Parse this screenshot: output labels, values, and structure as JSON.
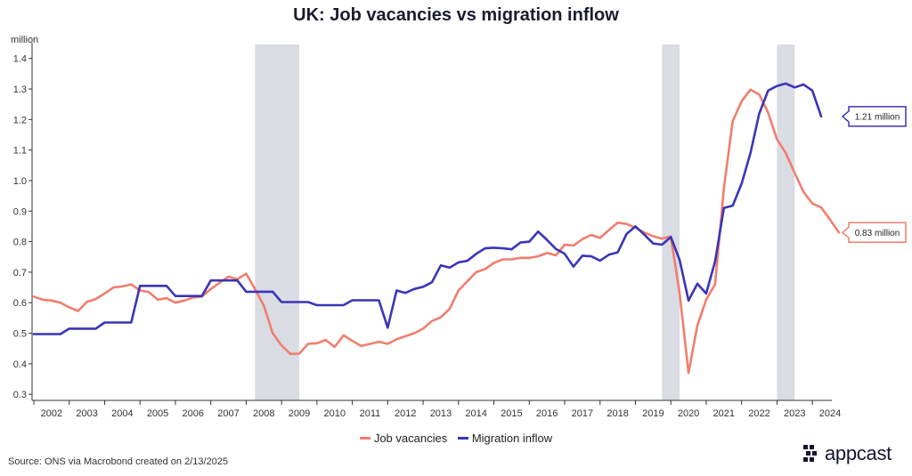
{
  "chart_data": {
    "type": "line",
    "title": "UK: Job vacancies vs migration inflow",
    "ylabel": "million",
    "ylim": [
      0.28,
      1.44
    ],
    "yticks": [
      0.3,
      0.4,
      0.5,
      0.6,
      0.7,
      0.8,
      0.9,
      1.0,
      1.1,
      1.2,
      1.3,
      1.4
    ],
    "ytick_labels": [
      "0.3",
      "0.4",
      "0.5",
      "0.6",
      "0.7",
      "0.8",
      "0.9",
      "1.0",
      "1.1",
      "1.2",
      "1.3",
      "1.4"
    ],
    "xlim": [
      2001.95,
      2024.55
    ],
    "xtick_labels": [
      "2002",
      "2003",
      "2004",
      "2005",
      "2006",
      "2007",
      "2008",
      "2009",
      "2010",
      "2011",
      "2012",
      "2013",
      "2014",
      "2015",
      "2016",
      "2017",
      "2018",
      "2019",
      "2020",
      "2021",
      "2022",
      "2023",
      "2024"
    ],
    "shaded_periods": [
      [
        2008.25,
        2009.5
      ],
      [
        2019.75,
        2020.25
      ],
      [
        2023.0,
        2023.5
      ]
    ],
    "series": [
      {
        "name": "Job vacancies",
        "color": "#f07e6e",
        "callout": "0.83 million",
        "points": [
          [
            2002.0,
            0.62
          ],
          [
            2002.25,
            0.61
          ],
          [
            2002.5,
            0.607
          ],
          [
            2002.75,
            0.6
          ],
          [
            2003.0,
            0.585
          ],
          [
            2003.25,
            0.573
          ],
          [
            2003.5,
            0.603
          ],
          [
            2003.75,
            0.612
          ],
          [
            2004.0,
            0.63
          ],
          [
            2004.25,
            0.65
          ],
          [
            2004.5,
            0.653
          ],
          [
            2004.75,
            0.66
          ],
          [
            2005.0,
            0.64
          ],
          [
            2005.25,
            0.635
          ],
          [
            2005.5,
            0.61
          ],
          [
            2005.75,
            0.615
          ],
          [
            2006.0,
            0.6
          ],
          [
            2006.25,
            0.607
          ],
          [
            2006.5,
            0.617
          ],
          [
            2006.75,
            0.62
          ],
          [
            2007.0,
            0.645
          ],
          [
            2007.25,
            0.665
          ],
          [
            2007.5,
            0.685
          ],
          [
            2007.75,
            0.677
          ],
          [
            2008.0,
            0.695
          ],
          [
            2008.25,
            0.645
          ],
          [
            2008.5,
            0.59
          ],
          [
            2008.75,
            0.5
          ],
          [
            2009.0,
            0.46
          ],
          [
            2009.25,
            0.432
          ],
          [
            2009.5,
            0.433
          ],
          [
            2009.75,
            0.465
          ],
          [
            2010.0,
            0.467
          ],
          [
            2010.25,
            0.478
          ],
          [
            2010.5,
            0.455
          ],
          [
            2010.75,
            0.493
          ],
          [
            2011.0,
            0.475
          ],
          [
            2011.25,
            0.458
          ],
          [
            2011.5,
            0.465
          ],
          [
            2011.75,
            0.472
          ],
          [
            2012.0,
            0.465
          ],
          [
            2012.25,
            0.48
          ],
          [
            2012.5,
            0.49
          ],
          [
            2012.75,
            0.5
          ],
          [
            2013.0,
            0.515
          ],
          [
            2013.25,
            0.54
          ],
          [
            2013.5,
            0.552
          ],
          [
            2013.75,
            0.58
          ],
          [
            2014.0,
            0.64
          ],
          [
            2014.25,
            0.67
          ],
          [
            2014.5,
            0.7
          ],
          [
            2014.75,
            0.71
          ],
          [
            2015.0,
            0.73
          ],
          [
            2015.25,
            0.742
          ],
          [
            2015.5,
            0.742
          ],
          [
            2015.75,
            0.747
          ],
          [
            2016.0,
            0.747
          ],
          [
            2016.25,
            0.752
          ],
          [
            2016.5,
            0.763
          ],
          [
            2016.75,
            0.755
          ],
          [
            2017.0,
            0.79
          ],
          [
            2017.25,
            0.787
          ],
          [
            2017.5,
            0.808
          ],
          [
            2017.75,
            0.822
          ],
          [
            2018.0,
            0.812
          ],
          [
            2018.25,
            0.838
          ],
          [
            2018.5,
            0.862
          ],
          [
            2018.75,
            0.858
          ],
          [
            2019.0,
            0.845
          ],
          [
            2019.25,
            0.83
          ],
          [
            2019.5,
            0.818
          ],
          [
            2019.75,
            0.81
          ],
          [
            2020.0,
            0.817
          ],
          [
            2020.25,
            0.63
          ],
          [
            2020.5,
            0.37
          ],
          [
            2020.75,
            0.525
          ],
          [
            2021.0,
            0.61
          ],
          [
            2021.25,
            0.66
          ],
          [
            2021.5,
            0.975
          ],
          [
            2021.75,
            1.195
          ],
          [
            2022.0,
            1.26
          ],
          [
            2022.25,
            1.298
          ],
          [
            2022.5,
            1.282
          ],
          [
            2022.75,
            1.222
          ],
          [
            2023.0,
            1.135
          ],
          [
            2023.25,
            1.09
          ],
          [
            2023.5,
            1.025
          ],
          [
            2023.75,
            0.963
          ],
          [
            2024.0,
            0.925
          ],
          [
            2024.25,
            0.912
          ],
          [
            2024.5,
            0.872
          ],
          [
            2024.75,
            0.83
          ]
        ]
      },
      {
        "name": "Migration inflow",
        "color": "#3a35b5",
        "callout": "1.21 million",
        "points": [
          [
            2002.0,
            0.497
          ],
          [
            2002.75,
            0.497
          ],
          [
            2003.0,
            0.515
          ],
          [
            2003.75,
            0.515
          ],
          [
            2004.0,
            0.535
          ],
          [
            2004.75,
            0.535
          ],
          [
            2005.0,
            0.655
          ],
          [
            2005.75,
            0.655
          ],
          [
            2006.0,
            0.622
          ],
          [
            2006.75,
            0.622
          ],
          [
            2007.0,
            0.673
          ],
          [
            2007.75,
            0.673
          ],
          [
            2008.0,
            0.636
          ],
          [
            2008.75,
            0.636
          ],
          [
            2009.0,
            0.602
          ],
          [
            2009.75,
            0.602
          ],
          [
            2010.0,
            0.592
          ],
          [
            2010.75,
            0.592
          ],
          [
            2011.0,
            0.608
          ],
          [
            2011.75,
            0.608
          ],
          [
            2012.0,
            0.518
          ],
          [
            2012.25,
            0.64
          ],
          [
            2012.5,
            0.632
          ],
          [
            2012.75,
            0.645
          ],
          [
            2013.0,
            0.652
          ],
          [
            2013.25,
            0.667
          ],
          [
            2013.5,
            0.722
          ],
          [
            2013.75,
            0.715
          ],
          [
            2014.0,
            0.732
          ],
          [
            2014.25,
            0.737
          ],
          [
            2014.5,
            0.76
          ],
          [
            2014.75,
            0.778
          ],
          [
            2015.0,
            0.78
          ],
          [
            2015.25,
            0.778
          ],
          [
            2015.5,
            0.775
          ],
          [
            2015.75,
            0.797
          ],
          [
            2016.0,
            0.8
          ],
          [
            2016.25,
            0.833
          ],
          [
            2016.5,
            0.806
          ],
          [
            2016.75,
            0.776
          ],
          [
            2017.0,
            0.76
          ],
          [
            2017.25,
            0.718
          ],
          [
            2017.5,
            0.754
          ],
          [
            2017.75,
            0.752
          ],
          [
            2018.0,
            0.738
          ],
          [
            2018.25,
            0.757
          ],
          [
            2018.5,
            0.765
          ],
          [
            2018.75,
            0.825
          ],
          [
            2019.0,
            0.85
          ],
          [
            2019.25,
            0.823
          ],
          [
            2019.5,
            0.794
          ],
          [
            2019.75,
            0.79
          ],
          [
            2020.0,
            0.815
          ],
          [
            2020.25,
            0.74
          ],
          [
            2020.5,
            0.607
          ],
          [
            2020.75,
            0.662
          ],
          [
            2021.0,
            0.63
          ],
          [
            2021.25,
            0.735
          ],
          [
            2021.5,
            0.91
          ],
          [
            2021.75,
            0.918
          ],
          [
            2022.0,
            0.99
          ],
          [
            2022.25,
            1.09
          ],
          [
            2022.5,
            1.22
          ],
          [
            2022.75,
            1.295
          ],
          [
            2023.0,
            1.31
          ],
          [
            2023.25,
            1.318
          ],
          [
            2023.5,
            1.305
          ],
          [
            2023.75,
            1.315
          ],
          [
            2024.0,
            1.295
          ],
          [
            2024.25,
            1.21
          ]
        ]
      }
    ]
  },
  "footer": {
    "source": "Source: ONS via Macrobond created on 2/13/2025",
    "logo_text": "appcast"
  }
}
